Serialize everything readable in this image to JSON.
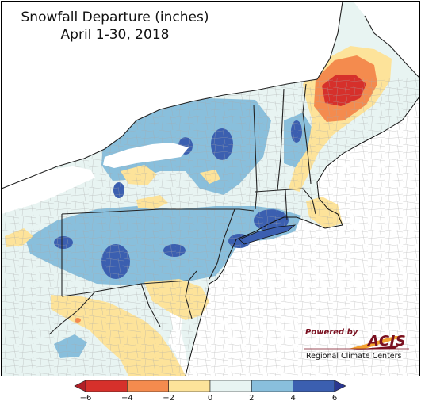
{
  "title": "Snowfall Departure (inches)",
  "subtitle": "April 1-30, 2018",
  "logo": {
    "powered_by": "Powered by",
    "name": "ACIS",
    "org": "Regional Climate Centers"
  },
  "legend": {
    "ticks": [
      "−6",
      "−4",
      "−2",
      "0",
      "2",
      "4",
      "6"
    ],
    "bins": [
      {
        "range": [
          -6,
          -4
        ],
        "color": "#d6302b"
      },
      {
        "range": [
          -4,
          -2
        ],
        "color": "#f48b4e"
      },
      {
        "range": [
          -2,
          0
        ],
        "color": "#fde39a"
      },
      {
        "range": [
          0,
          2
        ],
        "color": "#e8f4f2"
      },
      {
        "range": [
          2,
          4
        ],
        "color": "#89bfdc"
      },
      {
        "range": [
          4,
          6
        ],
        "color": "#3b5fb0"
      }
    ],
    "below_color": "#b11f27",
    "above_color": "#2b3790"
  },
  "colors": {
    "water": "#ffffff",
    "near_normal": "#e8f4f2",
    "state_border": "#222222",
    "county_border": "#9a9a9a"
  }
}
